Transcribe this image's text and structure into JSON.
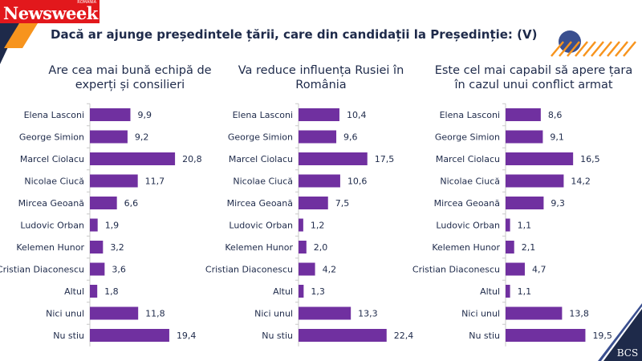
{
  "logo": {
    "text": "Newsweek",
    "edition": "ROMÂNIA"
  },
  "title": "Dacă ar ajunge președintele țării, care din candidații la Președinție: (V)",
  "bcs_logo": "BCS",
  "colors": {
    "bar": "#7030a0",
    "navy": "#1e2a4a",
    "orange": "#f7941d",
    "red": "#e2181c"
  },
  "chart_data": [
    {
      "type": "bar",
      "orientation": "horizontal",
      "title": "Are cea mai bună echipă de experți și consilieri",
      "categories": [
        "Elena Lasconi",
        "George Simion",
        "Marcel Ciolacu",
        "Nicolae Ciucă",
        "Mircea Geoană",
        "Ludovic Orban",
        "Kelemen Hunor",
        "Cristian Diaconescu",
        "Altul",
        "Nici unul",
        "Nu stiu"
      ],
      "values": [
        9.9,
        9.2,
        20.8,
        11.7,
        6.6,
        1.9,
        3.2,
        3.6,
        1.8,
        11.8,
        19.4
      ],
      "labels": [
        "9,9",
        "9,2",
        "20,8",
        "11,7",
        "6,6",
        "1,9",
        "3,2",
        "3,6",
        "1,8",
        "11,8",
        "19,4"
      ]
    },
    {
      "type": "bar",
      "orientation": "horizontal",
      "title": "Va reduce influența Rusiei în România",
      "categories": [
        "Elena Lasconi",
        "George Simion",
        "Marcel Ciolacu",
        "Nicolae Ciucă",
        "Mircea Geoană",
        "Ludovic Orban",
        "Kelemen Hunor",
        "Cristian Diaconescu",
        "Altul",
        "Nici unul",
        "Nu stiu"
      ],
      "values": [
        10.4,
        9.6,
        17.5,
        10.6,
        7.5,
        1.2,
        2.0,
        4.2,
        1.3,
        13.3,
        22.4
      ],
      "labels": [
        "10,4",
        "9,6",
        "17,5",
        "10,6",
        "7,5",
        "1,2",
        "2,0",
        "4,2",
        "1,3",
        "13,3",
        "22,4"
      ]
    },
    {
      "type": "bar",
      "orientation": "horizontal",
      "title": "Este cel mai capabil să apere țara în cazul unui conflict armat",
      "categories": [
        "Elena Lasconi",
        "George Simion",
        "Marcel Ciolacu",
        "Nicolae Ciucă",
        "Mircea Geoană",
        "Ludovic Orban",
        "Kelemen Hunor",
        "Cristian Diaconescu",
        "Altul",
        "Nici unul",
        "Nu stiu"
      ],
      "values": [
        8.6,
        9.1,
        16.5,
        14.2,
        9.3,
        1.1,
        2.1,
        4.7,
        1.1,
        13.8,
        19.5
      ],
      "labels": [
        "8,6",
        "9,1",
        "16,5",
        "14,2",
        "9,3",
        "1,1",
        "2,1",
        "4,7",
        "1,1",
        "13,8",
        "19,5"
      ]
    }
  ]
}
